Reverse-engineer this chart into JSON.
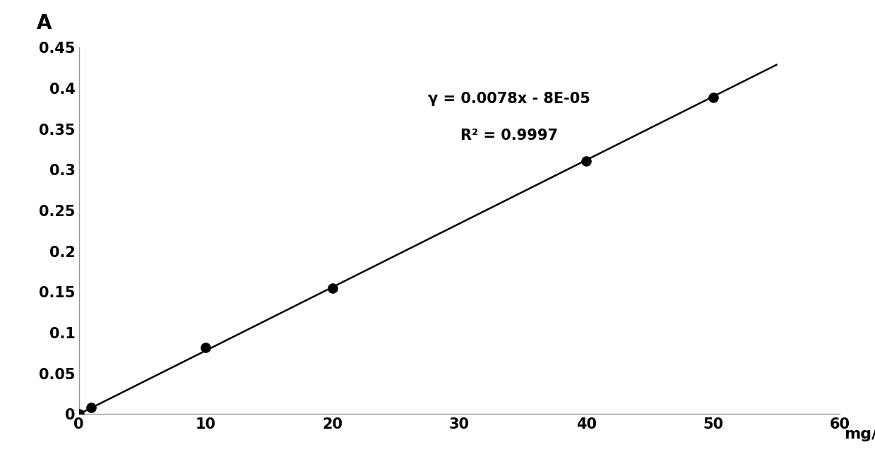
{
  "x_data": [
    0,
    1,
    10,
    20,
    40,
    50
  ],
  "y_data": [
    0,
    0.008,
    0.082,
    0.155,
    0.311,
    0.389
  ],
  "slope": 0.0078,
  "intercept": -8e-05,
  "r_squared": 0.9997,
  "equation_text": "γ = 0.0078x - 8E-05",
  "r2_text": "R² = 0.9997",
  "xlabel": "mg/L",
  "ylabel": "A",
  "xlim": [
    0,
    60
  ],
  "ylim": [
    0,
    0.45
  ],
  "xticks": [
    0,
    10,
    20,
    30,
    40,
    50,
    60
  ],
  "yticks": [
    0,
    0.05,
    0.1,
    0.15,
    0.2,
    0.25,
    0.3,
    0.35,
    0.4,
    0.45
  ],
  "line_x_end": 55,
  "line_color": "#000000",
  "marker_color": "#000000",
  "axis_color": "#999999",
  "background_color": "#ffffff",
  "fontsize_ticks": 15,
  "fontsize_xlabel": 16,
  "fontsize_annotation": 15,
  "fontsize_ylabel": 20,
  "marker_size": 90
}
